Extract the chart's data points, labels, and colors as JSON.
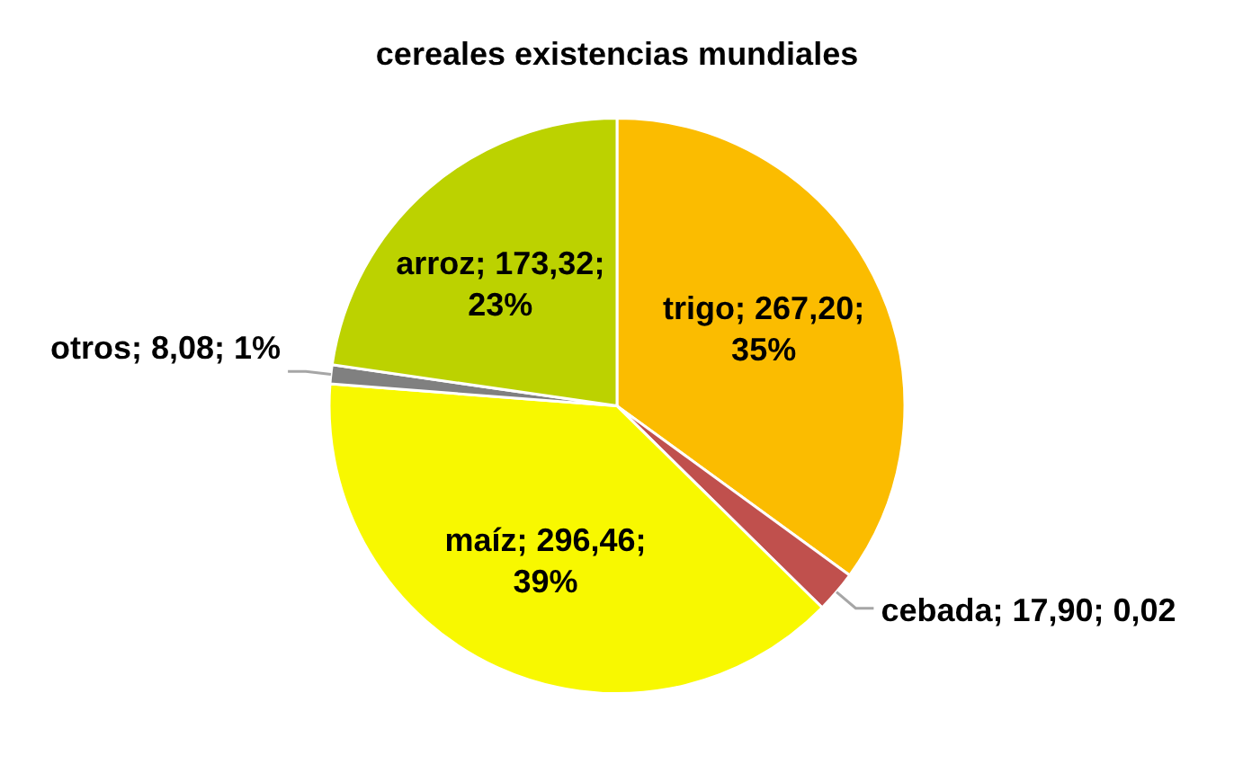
{
  "chart_data": {
    "type": "pie",
    "title": "cereales existencias mundiales",
    "categories": [
      "trigo",
      "cebada",
      "maíz",
      "otros",
      "arroz"
    ],
    "values": [
      267.2,
      17.9,
      296.46,
      8.08,
      173.32
    ],
    "colors": [
      "#fbbc00",
      "#c0504d",
      "#f8f800",
      "#808080",
      "#bcd200"
    ],
    "value_labels": [
      "; 267,20; 35%",
      "; 17,90; 0,02",
      "; 296,46; 39%",
      "; 8,08; 1%",
      "; 173,32; 23%"
    ]
  }
}
